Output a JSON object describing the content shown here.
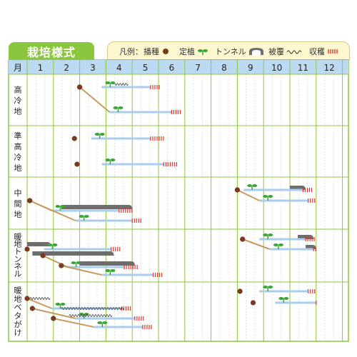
{
  "title": "栽培様式",
  "legend": {
    "prefix": "凡例：",
    "items": [
      {
        "label": "播種",
        "icon": "seed-dot-icon"
      },
      {
        "label": "定植",
        "icon": "sprout-icon"
      },
      {
        "label": "トンネル",
        "icon": "tunnel-icon"
      },
      {
        "label": "被覆",
        "icon": "wave-cover-icon"
      },
      {
        "label": "収穫",
        "icon": "harvest-dash-icon"
      }
    ]
  },
  "month_header": "月",
  "months": [
    "1",
    "2",
    "3",
    "4",
    "5",
    "6",
    "7",
    "8",
    "9",
    "10",
    "11",
    "12"
  ],
  "regions": [
    "高冷地",
    "準高冷地",
    "中間地",
    "暖地トンネル",
    "暖地ベタがけ"
  ],
  "colors": {
    "green": "#8cc63f",
    "header_blue": "#bcd9f2",
    "line_blue": "#a9cdee",
    "seed": "#7b3a1e",
    "stem": "#c79a5e",
    "sprout": "#3aa635",
    "harvest": "#e0352b",
    "tunnel": "#6d6d6d",
    "legend_bg": "#fdf7cf"
  }
}
